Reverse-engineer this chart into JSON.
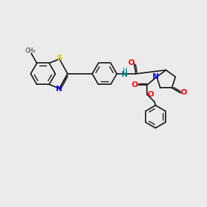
{
  "bg_color": "#ebebeb",
  "bond_color": "#1a1a1a",
  "nitrogen_color": "#0000ff",
  "oxygen_color": "#ff0000",
  "sulfur_color": "#cccc00",
  "nh_color": "#008080",
  "figure_size": [
    3.0,
    3.0
  ],
  "dpi": 100,
  "xlim": [
    0,
    10
  ],
  "ylim": [
    0,
    10
  ]
}
